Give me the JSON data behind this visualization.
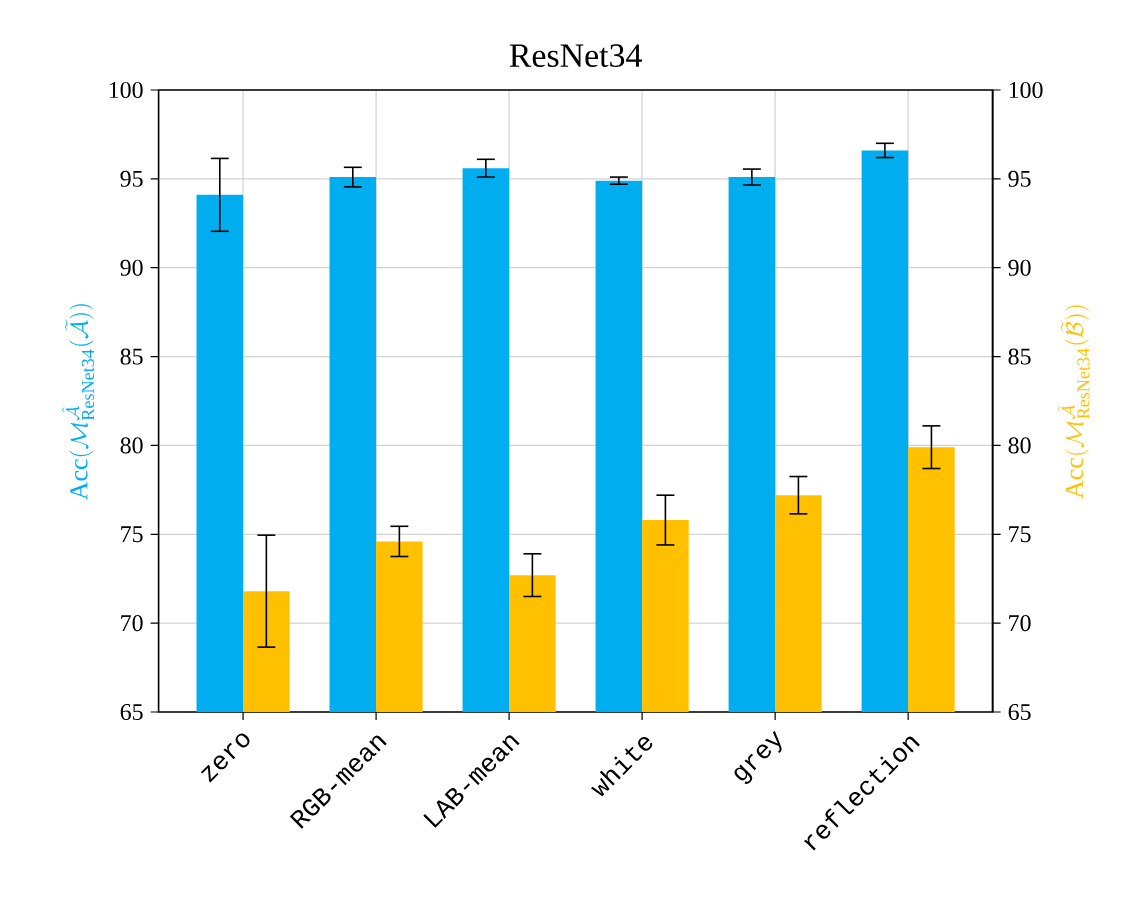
{
  "chart_data": {
    "type": "bar",
    "title": "ResNet34",
    "ylabel": "\\mathrm{Acc}(\\mathcal{M}^{\\hat{\\mathcal{A}}}_{\\mathrm{ResNet34}}(\\widetilde{\\mathcal{A}}))",
    "y2label": "\\mathrm{Acc}(\\mathcal{M}^{\\hat{\\mathcal{A}}}_{\\mathrm{ResNet34}}(\\widetilde{\\mathcal{B}}))",
    "categories": [
      "zero",
      "RGB-mean",
      "LAB-mean",
      "white",
      "grey",
      "reflection"
    ],
    "series": [
      {
        "color": "#00aeef",
        "values": [
          94.1,
          95.1,
          95.6,
          94.9,
          95.1,
          96.6
        ],
        "errors": [
          2.05,
          0.55,
          0.5,
          0.2,
          0.45,
          0.4
        ]
      },
      {
        "color": "#ffc000",
        "axis": "y2",
        "values": [
          71.8,
          74.6,
          72.7,
          75.8,
          77.2,
          79.9
        ],
        "errors": [
          3.15,
          0.85,
          1.2,
          1.4,
          1.05,
          1.2
        ]
      }
    ],
    "ylim": [
      65,
      100
    ],
    "yticks": [
      65,
      70,
      75,
      80,
      85,
      90,
      95,
      100
    ],
    "y2lim": [
      65,
      100
    ],
    "y2ticks": [
      65,
      70,
      75,
      80,
      85,
      90,
      95,
      100
    ],
    "grid": true
  }
}
